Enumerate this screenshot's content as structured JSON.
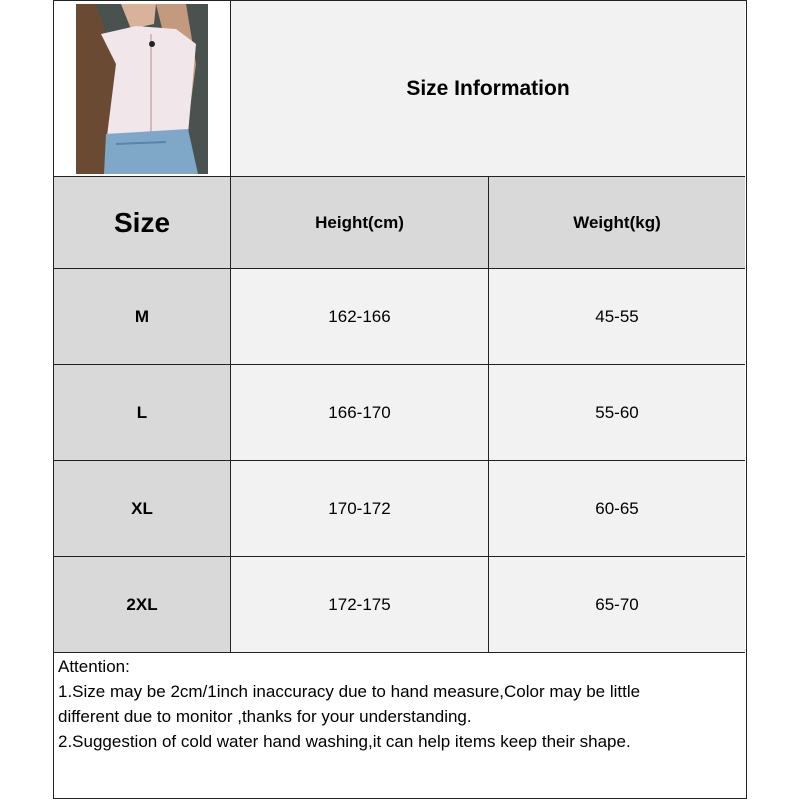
{
  "title": "Size Information",
  "columns": [
    "Size",
    "Height(cm)",
    "Weight(kg)"
  ],
  "rows": [
    {
      "size": "M",
      "height": "162-166",
      "weight": "45-55"
    },
    {
      "size": "L",
      "height": "166-170",
      "weight": "55-60"
    },
    {
      "size": "XL",
      "height": "170-172",
      "weight": "60-65"
    },
    {
      "size": "2XL",
      "height": "172-175",
      "weight": "65-70"
    }
  ],
  "attention": {
    "heading": "Attention:",
    "lines": [
      "1.Size may be 2cm/1inch inaccuracy due to hand measure,Color may be little",
      "different due to monitor ,thanks for your understanding.",
      "2.Suggestion of cold water hand washing,it can help items keep their shape."
    ]
  },
  "colors": {
    "header_bg": "#d9d9d9",
    "cell_bg": "#f2f2f2",
    "border": "#222222"
  }
}
